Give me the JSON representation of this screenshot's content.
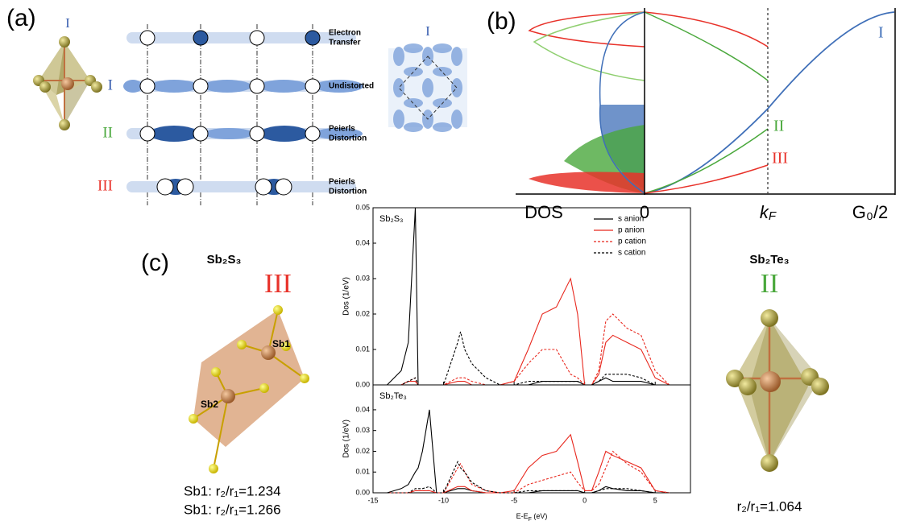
{
  "panel_a": {
    "label": "(a)",
    "octahedron_label": "I",
    "rows": [
      {
        "lines": [
          "Electron",
          "Transfer"
        ]
      },
      {
        "roman": "I",
        "lines": [
          "Undistorted"
        ]
      },
      {
        "roman": "II",
        "lines": [
          "Peierls",
          "Distortion"
        ]
      },
      {
        "roman": "III",
        "lines": [
          "Peierls",
          "Distortion"
        ]
      }
    ],
    "lattice_label": "I"
  },
  "panel_b": {
    "label": "(b)",
    "axis_labels": {
      "dos": "DOS",
      "zero": "0",
      "kf": [
        "k",
        "F"
      ],
      "g": "G₀/2"
    },
    "curve_labels": [
      "I",
      "II",
      "III"
    ]
  },
  "panel_c": {
    "label": "(c)",
    "left": {
      "title": "Sb₂S₃",
      "roman": "III",
      "sites": [
        "Sb1",
        "Sb2"
      ],
      "ratios": [
        "Sb1: r₂/r₁=1.234",
        "Sb1: r₂/r₁=1.266"
      ]
    },
    "right": {
      "title": "Sb₂Te₃",
      "roman": "II",
      "ratio": "r₂/r₁=1.064"
    }
  },
  "chart_data": [
    {
      "type": "line",
      "annotation": "Sb₂S₃",
      "y_label": "Dos (1/eV)",
      "legend": "upper right",
      "x": [
        -14,
        -13,
        -12.5,
        -12,
        -11.8,
        -11.5,
        -11,
        -10.5,
        -10,
        -9,
        -8.8,
        -8.5,
        -8,
        -7,
        -6,
        -5,
        -4,
        -3,
        -2,
        -1,
        -0.5,
        0,
        0.5,
        1,
        1.5,
        2,
        3,
        4,
        5,
        6
      ],
      "xlim": [
        -15,
        7.5
      ],
      "xticks": [
        -15,
        -10,
        -5,
        0,
        5
      ],
      "ylim": [
        0,
        0.05
      ],
      "yticks": [
        {
          "value": 0,
          "label": "0.00"
        },
        {
          "value": 0.01,
          "label": "0.01"
        },
        {
          "value": 0.02,
          "label": "0.02"
        },
        {
          "value": 0.03,
          "label": "0.03"
        },
        {
          "value": 0.04,
          "label": "0.04"
        },
        {
          "value": 0.05,
          "label": "0.05"
        }
      ],
      "series": [
        {
          "name": "s anion",
          "color": "#000000",
          "dash": false,
          "values": [
            0,
            0.004,
            0.012,
            0.05,
            0,
            0,
            0,
            0,
            0,
            0,
            0,
            0,
            0,
            0,
            0,
            0,
            0,
            0.001,
            0.001,
            0.001,
            0.001,
            0,
            0,
            0.001,
            0.002,
            0.001,
            0.001,
            0.001,
            0,
            0
          ]
        },
        {
          "name": "p anion",
          "color": "#e8281e",
          "dash": false,
          "values": [
            0,
            0,
            0.001,
            0.001,
            0,
            0,
            0,
            0,
            0,
            0.001,
            0.001,
            0.001,
            0,
            0,
            0,
            0.001,
            0.01,
            0.02,
            0.022,
            0.03,
            0.02,
            0,
            0,
            0.003,
            0.012,
            0.014,
            0.012,
            0.01,
            0.002,
            0
          ]
        },
        {
          "name": "p cation",
          "color": "#e8281e",
          "dash": true,
          "values": [
            0,
            0,
            0.001,
            0.002,
            0,
            0,
            0,
            0,
            0,
            0.002,
            0.002,
            0.002,
            0.001,
            0,
            0,
            0.001,
            0.006,
            0.01,
            0.01,
            0.003,
            0.002,
            0,
            0,
            0.004,
            0.018,
            0.02,
            0.016,
            0.014,
            0.004,
            0
          ]
        },
        {
          "name": "s cation",
          "color": "#000000",
          "dash": true,
          "values": [
            0,
            0,
            0.001,
            0.002,
            0,
            0,
            0,
            0,
            0,
            0.012,
            0.015,
            0.01,
            0.006,
            0.002,
            0,
            0,
            0.001,
            0.001,
            0.001,
            0.001,
            0.001,
            0,
            0,
            0.001,
            0.003,
            0.003,
            0.003,
            0.002,
            0,
            0
          ]
        }
      ]
    },
    {
      "type": "line",
      "annotation": "Sb₂Te₃",
      "y_label": "Dos (1/eV)",
      "x_label": [
        "E-E",
        "F",
        " (eV)"
      ],
      "x": [
        -14,
        -13,
        -12.5,
        -12,
        -11.8,
        -11.5,
        -11,
        -10.5,
        -10,
        -9,
        -8.8,
        -8.5,
        -8,
        -7,
        -6,
        -5,
        -4,
        -3,
        -2,
        -1,
        -0.5,
        0,
        0.5,
        1,
        1.5,
        2,
        3,
        4,
        5,
        6
      ],
      "xlim": [
        -15,
        7.5
      ],
      "xticks": [
        -15,
        -10,
        -5,
        0,
        5
      ],
      "ylim": [
        0,
        0.052
      ],
      "yticks": [
        {
          "value": 0,
          "label": "0.00"
        },
        {
          "value": 0.01,
          "label": "0.01"
        },
        {
          "value": 0.02,
          "label": "0.02"
        },
        {
          "value": 0.03,
          "label": "0.03"
        },
        {
          "value": 0.04,
          "label": "0.04"
        }
      ],
      "series": [
        {
          "color": "#000000",
          "dash": false,
          "values": [
            0,
            0.002,
            0.004,
            0.01,
            0.012,
            0.02,
            0.04,
            0,
            0,
            0.002,
            0.002,
            0.002,
            0.001,
            0,
            0,
            0,
            0,
            0.001,
            0.001,
            0.001,
            0.001,
            0,
            0,
            0.001,
            0.003,
            0.002,
            0.001,
            0.001,
            0,
            0
          ]
        },
        {
          "color": "#e8281e",
          "dash": false,
          "values": [
            0,
            0,
            0,
            0.001,
            0.001,
            0.001,
            0.001,
            0,
            0,
            0.003,
            0.003,
            0.003,
            0.001,
            0,
            0,
            0.001,
            0.012,
            0.018,
            0.02,
            0.028,
            0.015,
            0.001,
            0.001,
            0.01,
            0.02,
            0.018,
            0.015,
            0.012,
            0.001,
            0
          ]
        },
        {
          "color": "#e8281e",
          "dash": true,
          "values": [
            0,
            0,
            0,
            0.001,
            0.001,
            0.001,
            0.001,
            0,
            0,
            0.012,
            0.014,
            0.01,
            0.004,
            0.001,
            0,
            0,
            0.004,
            0.006,
            0.008,
            0.01,
            0.005,
            0.001,
            0.001,
            0.004,
            0.012,
            0.02,
            0.014,
            0.01,
            0.001,
            0
          ]
        },
        {
          "color": "#000000",
          "dash": true,
          "values": [
            0,
            0,
            0,
            0.002,
            0.002,
            0.002,
            0.003,
            0,
            0,
            0.015,
            0.012,
            0.01,
            0.005,
            0.001,
            0,
            0,
            0.001,
            0.001,
            0.001,
            0.001,
            0.001,
            0,
            0,
            0.001,
            0.002,
            0.002,
            0.002,
            0.001,
            0,
            0
          ]
        }
      ]
    }
  ]
}
